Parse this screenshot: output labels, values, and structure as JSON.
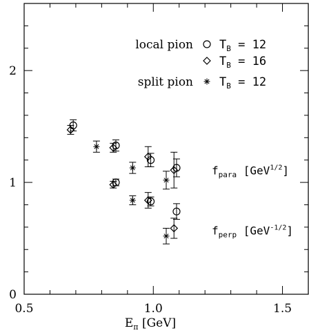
{
  "chart_data": {
    "type": "scatter",
    "title": "",
    "xlabel": "E",
    "xlabel_sub": "π",
    "xlabel_unit": "[GeV]",
    "ylabel": "",
    "xlim": [
      0.5,
      1.6
    ],
    "ylim": [
      0,
      2.6
    ],
    "x_ticks": [
      {
        "value": 0.5,
        "label": "0.5"
      },
      {
        "value": 1.0,
        "label": "1.0"
      },
      {
        "value": 1.5,
        "label": "1.5"
      }
    ],
    "y_ticks": [
      {
        "value": 0,
        "label": "0"
      },
      {
        "value": 1,
        "label": "1"
      },
      {
        "value": 2,
        "label": "2"
      }
    ],
    "x_minor_step": 0.1,
    "y_minor_step": 0.2,
    "grid": false,
    "legend_position": "top-right",
    "legend": [
      {
        "group": "local pion",
        "marker": "circle",
        "label": "T",
        "label_sub": "B",
        "label_value": "= 12"
      },
      {
        "group": "",
        "marker": "diamond",
        "label": "T",
        "label_sub": "B",
        "label_value": "= 16"
      },
      {
        "group": "split pion",
        "marker": "burst",
        "label": "T",
        "label_sub": "B",
        "label_value": "= 12"
      }
    ],
    "annotations": [
      {
        "main": "f",
        "sub": "para",
        "unit_open": "[GeV",
        "sup": "1/2",
        "unit_close": "]",
        "y": 1.11
      },
      {
        "main": "f",
        "sub": "perp",
        "unit_open": "[GeV",
        "sup": "-1/2",
        "unit_close": "]",
        "y": 0.57
      }
    ],
    "series": [
      {
        "marker": "circle",
        "points": [
          {
            "x": 0.69,
            "y": 1.51,
            "err": 0.05
          },
          {
            "x": 0.855,
            "y": 1.33,
            "err": 0.05
          },
          {
            "x": 0.855,
            "y": 1.0,
            "err": 0.03
          },
          {
            "x": 0.99,
            "y": 1.2,
            "err": 0.06
          },
          {
            "x": 0.99,
            "y": 0.83,
            "err": 0.04
          },
          {
            "x": 1.09,
            "y": 1.13,
            "err": 0.08
          },
          {
            "x": 1.09,
            "y": 0.74,
            "err": 0.07
          }
        ]
      },
      {
        "marker": "diamond",
        "points": [
          {
            "x": 0.68,
            "y": 1.47,
            "err": 0.04
          },
          {
            "x": 0.845,
            "y": 1.31,
            "err": 0.04
          },
          {
            "x": 0.845,
            "y": 0.98,
            "err": 0.03
          },
          {
            "x": 0.98,
            "y": 1.23,
            "err": 0.09
          },
          {
            "x": 0.98,
            "y": 0.84,
            "err": 0.07
          },
          {
            "x": 1.08,
            "y": 1.11,
            "err": 0.16
          },
          {
            "x": 1.08,
            "y": 0.59,
            "err": 0.09
          }
        ]
      },
      {
        "marker": "burst",
        "points": [
          {
            "x": 0.78,
            "y": 1.32,
            "err": 0.05
          },
          {
            "x": 0.92,
            "y": 1.13,
            "err": 0.05
          },
          {
            "x": 0.92,
            "y": 0.84,
            "err": 0.04
          },
          {
            "x": 1.05,
            "y": 1.02,
            "err": 0.08
          },
          {
            "x": 1.05,
            "y": 0.52,
            "err": 0.07
          }
        ]
      }
    ]
  }
}
